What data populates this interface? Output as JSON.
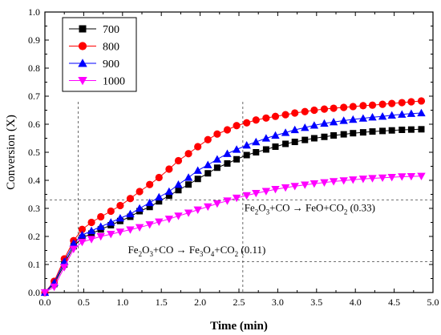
{
  "chart_data": {
    "type": "line",
    "xlabel": "Time (min)",
    "ylabel": "Conversion (X)",
    "xlim": [
      0.0,
      5.0
    ],
    "ylim": [
      0.0,
      1.0
    ],
    "xticks": [
      "0.0",
      "0.5",
      "1.0",
      "1.5",
      "2.0",
      "2.5",
      "3.0",
      "3.5",
      "4.0",
      "4.5",
      "5.0"
    ],
    "yticks": [
      "0.0",
      "0.1",
      "0.2",
      "0.3",
      "0.4",
      "0.5",
      "0.6",
      "0.7",
      "0.8",
      "0.9",
      "1.0"
    ],
    "legend_position": "top-left",
    "grid": false,
    "x": [
      0.0,
      0.12,
      0.25,
      0.37,
      0.48,
      0.6,
      0.72,
      0.85,
      0.97,
      1.1,
      1.22,
      1.35,
      1.47,
      1.6,
      1.72,
      1.85,
      1.97,
      2.1,
      2.22,
      2.35,
      2.47,
      2.6,
      2.72,
      2.85,
      2.97,
      3.1,
      3.22,
      3.35,
      3.47,
      3.6,
      3.72,
      3.85,
      3.97,
      4.1,
      4.22,
      4.35,
      4.47,
      4.6,
      4.72,
      4.85
    ],
    "series": [
      {
        "name": "700",
        "color": "#000000",
        "marker": "square",
        "values": [
          0.0,
          0.03,
          0.1,
          0.165,
          0.195,
          0.21,
          0.225,
          0.24,
          0.255,
          0.27,
          0.29,
          0.305,
          0.325,
          0.345,
          0.365,
          0.385,
          0.405,
          0.425,
          0.445,
          0.46,
          0.475,
          0.49,
          0.5,
          0.51,
          0.52,
          0.53,
          0.537,
          0.544,
          0.55,
          0.555,
          0.56,
          0.564,
          0.568,
          0.571,
          0.574,
          0.576,
          0.578,
          0.58,
          0.581,
          0.582
        ]
      },
      {
        "name": "800",
        "color": "#ff0000",
        "marker": "circle",
        "values": [
          0.0,
          0.04,
          0.12,
          0.185,
          0.225,
          0.25,
          0.27,
          0.29,
          0.31,
          0.335,
          0.36,
          0.385,
          0.41,
          0.44,
          0.47,
          0.495,
          0.52,
          0.545,
          0.565,
          0.58,
          0.595,
          0.605,
          0.615,
          0.622,
          0.628,
          0.634,
          0.64,
          0.645,
          0.65,
          0.654,
          0.657,
          0.66,
          0.663,
          0.666,
          0.668,
          0.671,
          0.674,
          0.677,
          0.68,
          0.683
        ]
      },
      {
        "name": "900",
        "color": "#0000ff",
        "marker": "triangle-up",
        "values": [
          0.0,
          0.035,
          0.11,
          0.175,
          0.205,
          0.22,
          0.235,
          0.25,
          0.265,
          0.28,
          0.3,
          0.32,
          0.34,
          0.36,
          0.385,
          0.41,
          0.435,
          0.455,
          0.475,
          0.495,
          0.51,
          0.525,
          0.537,
          0.55,
          0.56,
          0.57,
          0.58,
          0.588,
          0.596,
          0.603,
          0.608,
          0.613,
          0.617,
          0.621,
          0.625,
          0.628,
          0.632,
          0.635,
          0.638,
          0.64
        ]
      },
      {
        "name": "1000",
        "color": "#ff00ff",
        "marker": "triangle-down",
        "values": [
          0.0,
          0.02,
          0.09,
          0.155,
          0.18,
          0.19,
          0.2,
          0.208,
          0.216,
          0.224,
          0.232,
          0.242,
          0.252,
          0.262,
          0.273,
          0.284,
          0.295,
          0.306,
          0.317,
          0.327,
          0.337,
          0.346,
          0.354,
          0.361,
          0.368,
          0.374,
          0.379,
          0.384,
          0.388,
          0.392,
          0.396,
          0.399,
          0.402,
          0.405,
          0.407,
          0.409,
          0.411,
          0.413,
          0.414,
          0.415
        ]
      }
    ],
    "reference_lines": {
      "horizontal": [
        0.11,
        0.33
      ],
      "vertical": [
        0.43,
        2.55
      ]
    },
    "annotations": [
      {
        "id": "anno_feo",
        "segments": [
          {
            "t": "Fe",
            "s": "n"
          },
          {
            "t": "2",
            "s": "sub"
          },
          {
            "t": "O",
            "s": "n"
          },
          {
            "t": "3",
            "s": "sub"
          },
          {
            "t": "+CO",
            "s": "n"
          },
          {
            "t": "  →  ",
            "s": "n"
          },
          {
            "t": "FeO+CO",
            "s": "n"
          },
          {
            "t": "2",
            "s": "sub"
          },
          {
            "t": " (0.33)",
            "s": "n"
          }
        ],
        "x": 2.57,
        "y": 0.29
      },
      {
        "id": "anno_fe3o4",
        "segments": [
          {
            "t": "Fe",
            "s": "n"
          },
          {
            "t": "2",
            "s": "sub"
          },
          {
            "t": "O",
            "s": "n"
          },
          {
            "t": "3",
            "s": "sub"
          },
          {
            "t": "+CO",
            "s": "n"
          },
          {
            "t": "  →  ",
            "s": "n"
          },
          {
            "t": "Fe",
            "s": "n"
          },
          {
            "t": "3",
            "s": "sub"
          },
          {
            "t": "O",
            "s": "n"
          },
          {
            "t": "4",
            "s": "sub"
          },
          {
            "t": "+CO",
            "s": "n"
          },
          {
            "t": "2",
            "s": "sub"
          },
          {
            "t": "     (0.11)",
            "s": "n"
          }
        ],
        "x": 1.07,
        "y": 0.14
      }
    ]
  }
}
